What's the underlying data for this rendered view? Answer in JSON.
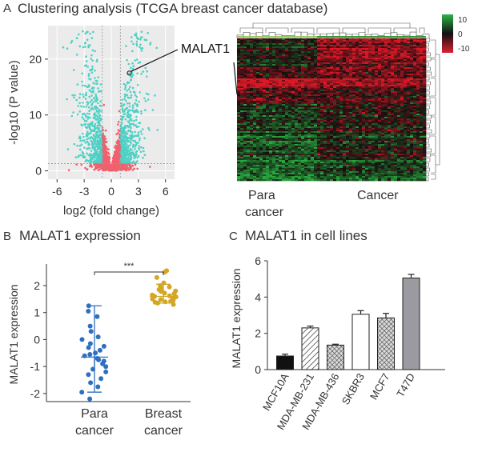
{
  "panels": {
    "A": {
      "letter": "A",
      "title": "Clustering analysis (TCGA breast cancer database)"
    },
    "B": {
      "letter": "B",
      "title": "MALAT1 expression"
    },
    "C": {
      "letter": "C",
      "title": "MALAT1 in cell lines"
    }
  },
  "colors": {
    "volcano_bg": "#ebebeb",
    "volcano_signif": "#4fd1c5",
    "volcano_nonsig": "#f0606e",
    "heat_high": "#d11c2c",
    "heat_low": "#2ea84a",
    "para_box": "#2f6fbf",
    "cancer_box": "#d4a626",
    "bar_fills": [
      "#111111",
      "hatch",
      "crosshatch",
      "#ffffff",
      "crosshatch",
      "#9a9aa0"
    ]
  },
  "chart_data": [
    {
      "type": "scatter",
      "subtype": "volcano",
      "xlabel": "log2 (fold change)",
      "ylabel": "-log10 (P value)",
      "xlim": [
        -7,
        7
      ],
      "ylim": [
        -1.5,
        26
      ],
      "xticks": [
        "-6",
        "-3",
        "0",
        "3",
        "6"
      ],
      "yticks": [
        "0",
        "10",
        "20"
      ],
      "threshold_lines": {
        "x": [
          -1,
          1
        ],
        "y": 1.3
      },
      "annotation": {
        "text": "MALAT1",
        "x": 2.0,
        "y": 17.5
      },
      "grid": true,
      "legend": "none"
    },
    {
      "type": "heatmap",
      "column_groups": [
        "Para\ncancer",
        "Cancer"
      ],
      "colorbar_ticks": [
        "10",
        "0",
        "-10"
      ],
      "colorbar_range": [
        -10,
        10
      ],
      "dendrograms": [
        "top",
        "right"
      ]
    },
    {
      "type": "box",
      "ylabel": "MALAT1 expression",
      "categories": [
        "Para\ncancer",
        "Breast\ncancer"
      ],
      "ylim": [
        -2.3,
        2.8
      ],
      "yticks": [
        "-2",
        "-1",
        "0",
        "1",
        "2"
      ],
      "significance": "***",
      "series": [
        {
          "values": [
            -1.95,
            -0.4,
            -0.65,
            -1.0,
            1.25
          ],
          "points": [
            1.25,
            1.05,
            0.85,
            0.5,
            0.3,
            0.1,
            0.0,
            -0.15,
            -0.25,
            -0.3,
            -0.4,
            -0.5,
            -0.55,
            -0.6,
            -0.7,
            -0.75,
            -0.8,
            -0.9,
            -1.0,
            -1.1,
            -1.2,
            -1.3,
            -1.45,
            -1.6,
            -1.75,
            -1.95,
            -2.2
          ]
        },
        {
          "values": [
            1.35,
            1.85,
            1.6,
            1.5,
            2.05
          ],
          "points": [
            2.5,
            2.55,
            2.3,
            2.1,
            2.0,
            1.95,
            1.9,
            1.85,
            1.8,
            1.78,
            1.72,
            1.7,
            1.65,
            1.62,
            1.6,
            1.58,
            1.55,
            1.52,
            1.5,
            1.48,
            1.45,
            1.42,
            1.4,
            1.38,
            1.35,
            1.3
          ]
        }
      ]
    },
    {
      "type": "bar",
      "ylabel": "MALAT1 expression",
      "categories": [
        "MCF10A",
        "MDA-MB-231",
        "MDA-MB-436",
        "SKBR3",
        "MCF7",
        "T47D"
      ],
      "values": [
        0.75,
        2.3,
        1.35,
        3.05,
        2.85,
        5.05
      ],
      "errors": [
        0.1,
        0.1,
        0.05,
        0.2,
        0.25,
        0.2
      ],
      "ylim": [
        0,
        6
      ],
      "yticks": [
        "0",
        "2",
        "4",
        "6"
      ]
    }
  ]
}
